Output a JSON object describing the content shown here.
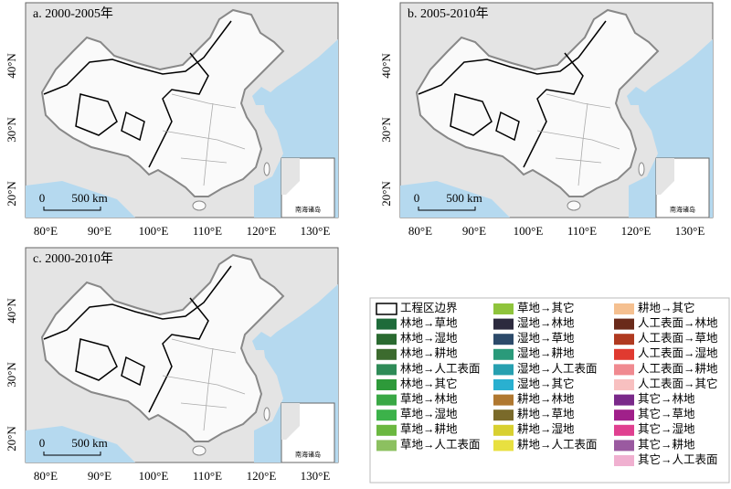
{
  "panels": [
    {
      "title": "a. 2000-2005年",
      "lat_labels": [
        "40°N",
        "30°N",
        "20°N"
      ],
      "lon_labels": [
        "80°E",
        "90°E",
        "100°E",
        "110°E",
        "120°E",
        "130°E"
      ],
      "scale_zero": "0",
      "scale_label": "500 km",
      "inset_label": "南海诸岛"
    },
    {
      "title": "b. 2005-2010年",
      "lat_labels": [
        "40°N",
        "30°N",
        "20°N"
      ],
      "lon_labels": [
        "80°E",
        "90°E",
        "100°E",
        "110°E",
        "120°E",
        "130°E"
      ],
      "scale_zero": "0",
      "scale_label": "500 km",
      "inset_label": "南海诸岛"
    },
    {
      "title": "c. 2000-2010年",
      "lat_labels": [
        "40°N",
        "30°N",
        "20°N"
      ],
      "lon_labels": [
        "80°E",
        "90°E",
        "100°E",
        "110°E",
        "120°E",
        "130°E"
      ],
      "scale_zero": "0",
      "scale_label": "500 km",
      "inset_label": "南海诸岛"
    }
  ],
  "legend": {
    "columns": [
      [
        {
          "label": "工程区边界",
          "color": "#ffffff"
        },
        {
          "label": "林地→草地",
          "color": "#1e6b3a"
        },
        {
          "label": "林地→湿地",
          "color": "#2a6a30"
        },
        {
          "label": "林地→耕地",
          "color": "#3c6b2e"
        },
        {
          "label": "林地→人工表面",
          "color": "#2e8b57"
        },
        {
          "label": "林地→其它",
          "color": "#2e9a3a"
        },
        {
          "label": "草地→林地",
          "color": "#39a845"
        },
        {
          "label": "草地→湿地",
          "color": "#3cb24a"
        },
        {
          "label": "草地→耕地",
          "color": "#6bb840"
        },
        {
          "label": "草地→人工表面",
          "color": "#8cc060"
        }
      ],
      [
        {
          "label": "草地→其它",
          "color": "#8fc43c"
        },
        {
          "label": "湿地→林地",
          "color": "#2c2a3e"
        },
        {
          "label": "湿地→草地",
          "color": "#2c4a6a"
        },
        {
          "label": "湿地→耕地",
          "color": "#2a9a7a"
        },
        {
          "label": "湿地→人工表面",
          "color": "#27a0b0"
        },
        {
          "label": "湿地→其它",
          "color": "#2ab0d0"
        },
        {
          "label": "耕地→林地",
          "color": "#b07830"
        },
        {
          "label": "耕地→草地",
          "color": "#7a6a2a"
        },
        {
          "label": "耕地→湿地",
          "color": "#d8d030"
        },
        {
          "label": "耕地→人工表面",
          "color": "#e8e040"
        }
      ],
      [
        {
          "label": "耕地→其它",
          "color": "#f5c090"
        },
        {
          "label": "人工表面→林地",
          "color": "#6a2a1a"
        },
        {
          "label": "人工表面→草地",
          "color": "#b03a20"
        },
        {
          "label": "人工表面→湿地",
          "color": "#e03a30"
        },
        {
          "label": "人工表面→耕地",
          "color": "#f08a90"
        },
        {
          "label": "人工表面→其它",
          "color": "#f8c0c0"
        },
        {
          "label": "其它→林地",
          "color": "#7a2a8a"
        },
        {
          "label": "其它→草地",
          "color": "#a0208a"
        },
        {
          "label": "其它→湿地",
          "color": "#e04090"
        },
        {
          "label": "其它→耕地",
          "color": "#9a5aa0"
        },
        {
          "label": "其它→人工表面",
          "color": "#f0b0d0"
        }
      ]
    ]
  }
}
